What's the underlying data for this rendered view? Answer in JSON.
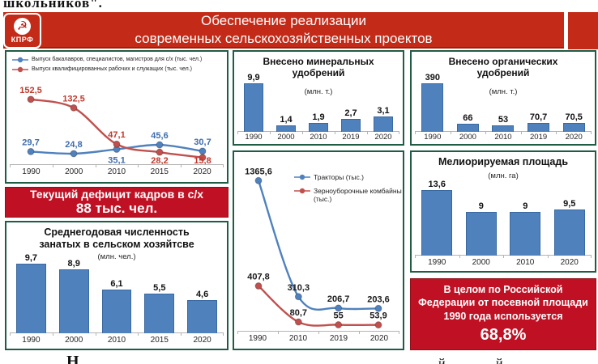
{
  "page": {
    "top_partial_text": "школьников\".",
    "bottom_partial_left": "Н",
    "bottom_partial_marks": [
      "й",
      "й"
    ]
  },
  "logo": {
    "party_name": "КПРФ",
    "symbol_icon": "hammer-and-sickle",
    "bg_color": "#c32a17"
  },
  "header": {
    "line1": "Обеспечение реализации",
    "line2": "современных сельскохозяйственных проектов",
    "bg_color": "#c32a17",
    "text_color": "#ffffff"
  },
  "banners": {
    "deficit": {
      "line1": "Текущий дефицит кадров в с/х",
      "line2": "88 тыс. чел.",
      "bg_color": "#c01124",
      "text_color": "#ffffff"
    },
    "sown": {
      "line1": "В целом по Российской",
      "line2": "Федерации от посевной площади",
      "line3": "1990 года используется",
      "value": "68,8%",
      "bg_color": "#c01124",
      "text_color": "#ffffff"
    }
  },
  "colors": {
    "panel_border": "#1f5c44",
    "bar_blue": "#4f81bd",
    "line_blue": "#4f81bd",
    "line_red": "#c0504d",
    "axis": "#b3b3b3"
  },
  "chart_data": [
    {
      "id": "education",
      "type": "line",
      "categories": [
        "1990",
        "2000",
        "2010",
        "2015",
        "2020"
      ],
      "series": [
        {
          "name": "Выпуск бакалавров, специалистов, магистров для с/х (тыс. чел.)",
          "color": "#4f81bd",
          "label_color": "#3f6cad",
          "values": [
            29.7,
            24.8,
            35.1,
            45.6,
            30.7
          ],
          "labels": [
            "29,7",
            "24,8",
            "35,1",
            "45,6",
            "30,7"
          ],
          "label_pos": [
            "above",
            "above",
            "below",
            "above",
            "above"
          ]
        },
        {
          "name": "Выпуск квалифицированных рабочих и служащих (тыс. чел.)",
          "color": "#c0504d",
          "label_color": "#c2382b",
          "values": [
            152.5,
            132.5,
            47.1,
            28.2,
            15.8
          ],
          "labels": [
            "152,5",
            "132,5",
            "47,1",
            "28,2",
            "15,8"
          ],
          "label_pos": [
            "above",
            "above",
            "above",
            "below",
            "below"
          ]
        }
      ],
      "ylim": [
        0,
        175
      ],
      "grid": false,
      "legend_position": "top-left"
    },
    {
      "id": "mineral",
      "type": "bar",
      "title": "Внесено минеральных удобрений",
      "unit": "(млн. т.)",
      "categories": [
        "1990",
        "2000",
        "2010",
        "2019",
        "2020"
      ],
      "values": [
        9.9,
        1.4,
        1.9,
        2.7,
        3.1
      ],
      "labels": [
        "9,9",
        "1,4",
        "1,9",
        "2,7",
        "3,1"
      ],
      "ylim": [
        0,
        9.9
      ],
      "grid": false
    },
    {
      "id": "organic",
      "type": "bar",
      "title": "Внесено органических удобрений",
      "unit": "(млн. т.)",
      "categories": [
        "1990",
        "2000",
        "2010",
        "2019",
        "2020"
      ],
      "values": [
        390,
        66,
        53,
        70.7,
        70.5
      ],
      "labels": [
        "390",
        "66",
        "53",
        "70,7",
        "70,5"
      ],
      "ylim": [
        0,
        390
      ],
      "grid": false
    },
    {
      "id": "machinery",
      "type": "line",
      "categories": [
        "1990",
        "2010",
        "2019",
        "2020"
      ],
      "series": [
        {
          "name": "Тракторы (тыс.)",
          "color": "#4f81bd",
          "label_color": "#1a1a1a",
          "values": [
            1365.6,
            310.3,
            206.7,
            203.6
          ],
          "labels": [
            "1365,6",
            "310,3",
            "206,7",
            "203,6"
          ],
          "label_pos": [
            "above",
            "above",
            "above",
            "above"
          ]
        },
        {
          "name": "Зерноуборочные комбайны (тыс.)",
          "color": "#c0504d",
          "label_color": "#1a1a1a",
          "values": [
            407.8,
            80.7,
            55,
            53.9
          ],
          "labels": [
            "407,8",
            "80,7",
            "55",
            "53,9"
          ],
          "label_pos": [
            "above",
            "above",
            "above",
            "above"
          ]
        }
      ],
      "ylim": [
        0,
        1500
      ],
      "grid": false,
      "legend_position": "upper-middle"
    },
    {
      "id": "employment",
      "type": "bar",
      "title": "Среднегодовая численность занатых в сельском хозяйтсве",
      "unit": "(млн. чел.)",
      "categories": [
        "1990",
        "2000",
        "2010",
        "2015",
        "2020"
      ],
      "values": [
        9.7,
        8.9,
        6.1,
        5.5,
        4.6
      ],
      "labels": [
        "9,7",
        "8,9",
        "6,1",
        "5,5",
        "4,6"
      ],
      "ylim": [
        0,
        9.7
      ],
      "grid": false
    },
    {
      "id": "melioration",
      "type": "bar",
      "title": "Мелиорируемая площадь",
      "unit": "(млн. га)",
      "categories": [
        "1990",
        "2000",
        "2010",
        "2020"
      ],
      "values": [
        13.6,
        9,
        9,
        9.5
      ],
      "labels": [
        "13,6",
        "9",
        "9",
        "9,5"
      ],
      "ylim": [
        0,
        13.6
      ],
      "grid": false
    }
  ]
}
